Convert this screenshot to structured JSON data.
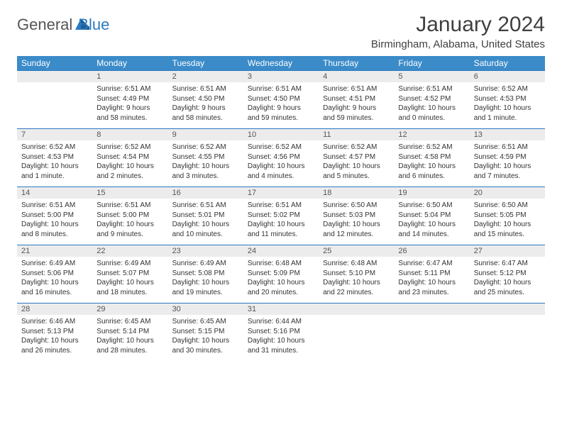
{
  "brand": {
    "word1": "General",
    "word2": "Blue"
  },
  "title": "January 2024",
  "location": "Birmingham, Alabama, United States",
  "columns": [
    "Sunday",
    "Monday",
    "Tuesday",
    "Wednesday",
    "Thursday",
    "Friday",
    "Saturday"
  ],
  "colors": {
    "header_bg": "#3b8bc9",
    "header_text": "#ffffff",
    "accent": "#2b79c2",
    "daynum_bg": "#ececec",
    "text": "#333333",
    "logo_gray": "#555555"
  },
  "typography": {
    "title_fontsize": 30,
    "location_fontsize": 15,
    "header_fontsize": 12,
    "daynum_fontsize": 11,
    "body_fontsize": 10
  },
  "layout": {
    "cols": 7,
    "rows": 5,
    "start_offset": 1
  },
  "days": [
    {
      "n": "1",
      "sunrise": "Sunrise: 6:51 AM",
      "sunset": "Sunset: 4:49 PM",
      "daylight": "Daylight: 9 hours and 58 minutes."
    },
    {
      "n": "2",
      "sunrise": "Sunrise: 6:51 AM",
      "sunset": "Sunset: 4:50 PM",
      "daylight": "Daylight: 9 hours and 58 minutes."
    },
    {
      "n": "3",
      "sunrise": "Sunrise: 6:51 AM",
      "sunset": "Sunset: 4:50 PM",
      "daylight": "Daylight: 9 hours and 59 minutes."
    },
    {
      "n": "4",
      "sunrise": "Sunrise: 6:51 AM",
      "sunset": "Sunset: 4:51 PM",
      "daylight": "Daylight: 9 hours and 59 minutes."
    },
    {
      "n": "5",
      "sunrise": "Sunrise: 6:51 AM",
      "sunset": "Sunset: 4:52 PM",
      "daylight": "Daylight: 10 hours and 0 minutes."
    },
    {
      "n": "6",
      "sunrise": "Sunrise: 6:52 AM",
      "sunset": "Sunset: 4:53 PM",
      "daylight": "Daylight: 10 hours and 1 minute."
    },
    {
      "n": "7",
      "sunrise": "Sunrise: 6:52 AM",
      "sunset": "Sunset: 4:53 PM",
      "daylight": "Daylight: 10 hours and 1 minute."
    },
    {
      "n": "8",
      "sunrise": "Sunrise: 6:52 AM",
      "sunset": "Sunset: 4:54 PM",
      "daylight": "Daylight: 10 hours and 2 minutes."
    },
    {
      "n": "9",
      "sunrise": "Sunrise: 6:52 AM",
      "sunset": "Sunset: 4:55 PM",
      "daylight": "Daylight: 10 hours and 3 minutes."
    },
    {
      "n": "10",
      "sunrise": "Sunrise: 6:52 AM",
      "sunset": "Sunset: 4:56 PM",
      "daylight": "Daylight: 10 hours and 4 minutes."
    },
    {
      "n": "11",
      "sunrise": "Sunrise: 6:52 AM",
      "sunset": "Sunset: 4:57 PM",
      "daylight": "Daylight: 10 hours and 5 minutes."
    },
    {
      "n": "12",
      "sunrise": "Sunrise: 6:52 AM",
      "sunset": "Sunset: 4:58 PM",
      "daylight": "Daylight: 10 hours and 6 minutes."
    },
    {
      "n": "13",
      "sunrise": "Sunrise: 6:51 AM",
      "sunset": "Sunset: 4:59 PM",
      "daylight": "Daylight: 10 hours and 7 minutes."
    },
    {
      "n": "14",
      "sunrise": "Sunrise: 6:51 AM",
      "sunset": "Sunset: 5:00 PM",
      "daylight": "Daylight: 10 hours and 8 minutes."
    },
    {
      "n": "15",
      "sunrise": "Sunrise: 6:51 AM",
      "sunset": "Sunset: 5:00 PM",
      "daylight": "Daylight: 10 hours and 9 minutes."
    },
    {
      "n": "16",
      "sunrise": "Sunrise: 6:51 AM",
      "sunset": "Sunset: 5:01 PM",
      "daylight": "Daylight: 10 hours and 10 minutes."
    },
    {
      "n": "17",
      "sunrise": "Sunrise: 6:51 AM",
      "sunset": "Sunset: 5:02 PM",
      "daylight": "Daylight: 10 hours and 11 minutes."
    },
    {
      "n": "18",
      "sunrise": "Sunrise: 6:50 AM",
      "sunset": "Sunset: 5:03 PM",
      "daylight": "Daylight: 10 hours and 12 minutes."
    },
    {
      "n": "19",
      "sunrise": "Sunrise: 6:50 AM",
      "sunset": "Sunset: 5:04 PM",
      "daylight": "Daylight: 10 hours and 14 minutes."
    },
    {
      "n": "20",
      "sunrise": "Sunrise: 6:50 AM",
      "sunset": "Sunset: 5:05 PM",
      "daylight": "Daylight: 10 hours and 15 minutes."
    },
    {
      "n": "21",
      "sunrise": "Sunrise: 6:49 AM",
      "sunset": "Sunset: 5:06 PM",
      "daylight": "Daylight: 10 hours and 16 minutes."
    },
    {
      "n": "22",
      "sunrise": "Sunrise: 6:49 AM",
      "sunset": "Sunset: 5:07 PM",
      "daylight": "Daylight: 10 hours and 18 minutes."
    },
    {
      "n": "23",
      "sunrise": "Sunrise: 6:49 AM",
      "sunset": "Sunset: 5:08 PM",
      "daylight": "Daylight: 10 hours and 19 minutes."
    },
    {
      "n": "24",
      "sunrise": "Sunrise: 6:48 AM",
      "sunset": "Sunset: 5:09 PM",
      "daylight": "Daylight: 10 hours and 20 minutes."
    },
    {
      "n": "25",
      "sunrise": "Sunrise: 6:48 AM",
      "sunset": "Sunset: 5:10 PM",
      "daylight": "Daylight: 10 hours and 22 minutes."
    },
    {
      "n": "26",
      "sunrise": "Sunrise: 6:47 AM",
      "sunset": "Sunset: 5:11 PM",
      "daylight": "Daylight: 10 hours and 23 minutes."
    },
    {
      "n": "27",
      "sunrise": "Sunrise: 6:47 AM",
      "sunset": "Sunset: 5:12 PM",
      "daylight": "Daylight: 10 hours and 25 minutes."
    },
    {
      "n": "28",
      "sunrise": "Sunrise: 6:46 AM",
      "sunset": "Sunset: 5:13 PM",
      "daylight": "Daylight: 10 hours and 26 minutes."
    },
    {
      "n": "29",
      "sunrise": "Sunrise: 6:45 AM",
      "sunset": "Sunset: 5:14 PM",
      "daylight": "Daylight: 10 hours and 28 minutes."
    },
    {
      "n": "30",
      "sunrise": "Sunrise: 6:45 AM",
      "sunset": "Sunset: 5:15 PM",
      "daylight": "Daylight: 10 hours and 30 minutes."
    },
    {
      "n": "31",
      "sunrise": "Sunrise: 6:44 AM",
      "sunset": "Sunset: 5:16 PM",
      "daylight": "Daylight: 10 hours and 31 minutes."
    }
  ]
}
